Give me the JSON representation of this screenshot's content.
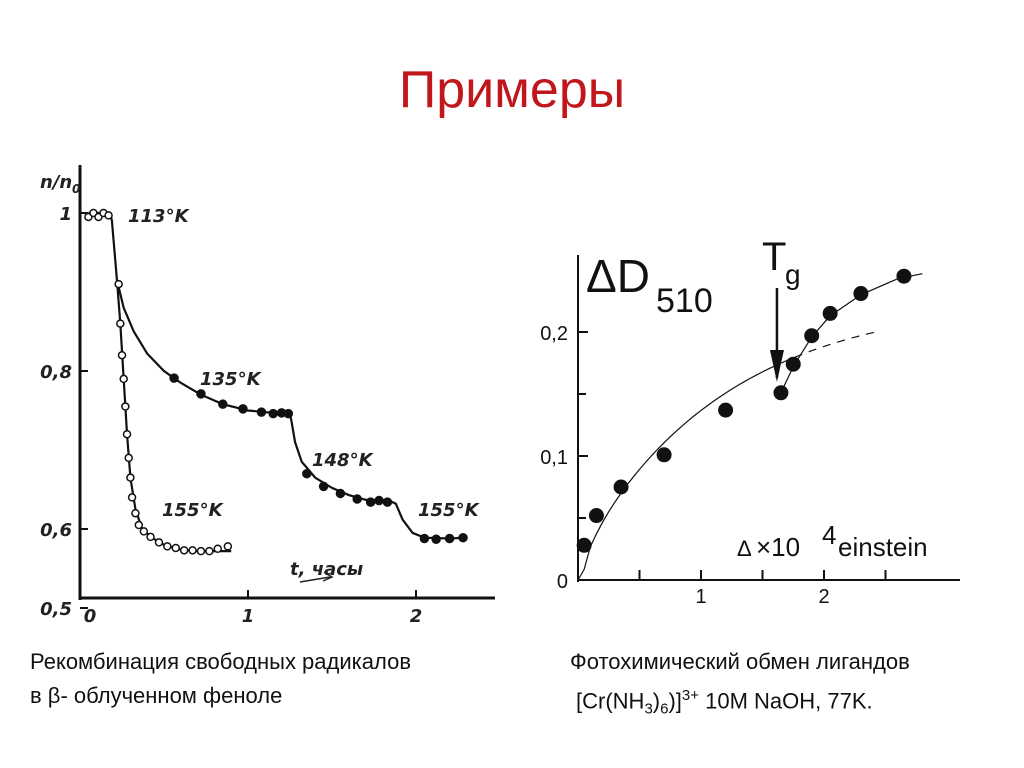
{
  "title": "Примеры",
  "chart_data": [
    {
      "type": "scatter",
      "ylabel": "n/n",
      "ylabel_sub": "0",
      "xlabel": "t, часы",
      "xlim": [
        0,
        2.5
      ],
      "ylim": [
        0.5,
        1.04
      ],
      "x_ticks": [
        "0",
        "1",
        "2"
      ],
      "y_ticks": [
        "1",
        "0,8",
        "0,6",
        "0,5"
      ],
      "series": [
        {
          "name": "113°K",
          "marker": "open",
          "points": [
            [
              0.05,
              0.995
            ],
            [
              0.08,
              1.0
            ],
            [
              0.11,
              0.995
            ],
            [
              0.14,
              1.0
            ],
            [
              0.17,
              0.997
            ]
          ]
        },
        {
          "name": "155°K",
          "marker": "open",
          "points": [
            [
              0.23,
              0.91
            ],
            [
              0.24,
              0.86
            ],
            [
              0.25,
              0.82
            ],
            [
              0.26,
              0.79
            ],
            [
              0.27,
              0.755
            ],
            [
              0.28,
              0.72
            ],
            [
              0.29,
              0.69
            ],
            [
              0.3,
              0.665
            ],
            [
              0.31,
              0.64
            ],
            [
              0.33,
              0.62
            ],
            [
              0.35,
              0.605
            ],
            [
              0.38,
              0.597
            ],
            [
              0.42,
              0.59
            ],
            [
              0.47,
              0.583
            ],
            [
              0.52,
              0.578
            ],
            [
              0.57,
              0.576
            ],
            [
              0.62,
              0.573
            ],
            [
              0.67,
              0.573
            ],
            [
              0.72,
              0.572
            ],
            [
              0.77,
              0.572
            ],
            [
              0.82,
              0.575
            ],
            [
              0.88,
              0.578
            ]
          ]
        },
        {
          "name": "135°K",
          "marker": "filled",
          "points": [
            [
              0.56,
              0.791
            ],
            [
              0.72,
              0.771
            ],
            [
              0.85,
              0.758
            ],
            [
              0.97,
              0.752
            ],
            [
              1.08,
              0.748
            ],
            [
              1.15,
              0.746
            ],
            [
              1.2,
              0.747
            ],
            [
              1.24,
              0.746
            ]
          ]
        },
        {
          "name": "148°K",
          "marker": "filled",
          "points": [
            [
              1.35,
              0.67
            ],
            [
              1.45,
              0.654
            ],
            [
              1.55,
              0.645
            ],
            [
              1.65,
              0.638
            ],
            [
              1.73,
              0.634
            ],
            [
              1.78,
              0.636
            ],
            [
              1.83,
              0.634
            ]
          ]
        },
        {
          "name": "155°K",
          "marker": "filled",
          "points": [
            [
              2.05,
              0.588
            ],
            [
              2.12,
              0.587
            ],
            [
              2.2,
              0.588
            ],
            [
              2.28,
              0.589
            ]
          ]
        }
      ],
      "caption_line1": "Рекомбинация свободных радикалов",
      "caption_line2": "в β- облученном феноле"
    },
    {
      "type": "scatter",
      "ylabel": "ΔD",
      "ylabel_sub": "510",
      "annotation": "T",
      "annotation_sub": "g",
      "xlabel_delta": "Δ",
      "xlabel_times": "×10",
      "xlabel_exp": "4",
      "xlabel_unit": "einstein",
      "xlim": [
        0,
        3.0
      ],
      "ylim": [
        0,
        0.25
      ],
      "x_ticks": [
        "1",
        "2"
      ],
      "y_ticks": [
        "0",
        "0,1",
        "0,2"
      ],
      "tg_x": 1.65,
      "points": [
        [
          0.05,
          0.028
        ],
        [
          0.15,
          0.052
        ],
        [
          0.35,
          0.075
        ],
        [
          0.7,
          0.101
        ],
        [
          1.2,
          0.137
        ],
        [
          1.65,
          0.151
        ],
        [
          1.75,
          0.174
        ],
        [
          1.9,
          0.197
        ],
        [
          2.05,
          0.215
        ],
        [
          2.3,
          0.231
        ],
        [
          2.65,
          0.245
        ]
      ],
      "caption_line1": "Фотохимический обмен лигандов",
      "caption_formula_pre": "[Cr(NH",
      "caption_formula_sub1": "3",
      "caption_formula_mid": ")",
      "caption_formula_sub2": "6",
      "caption_formula_close": ")]",
      "caption_formula_sup": "3+",
      "caption_formula_post": " 10M NaOH, 77K."
    }
  ]
}
